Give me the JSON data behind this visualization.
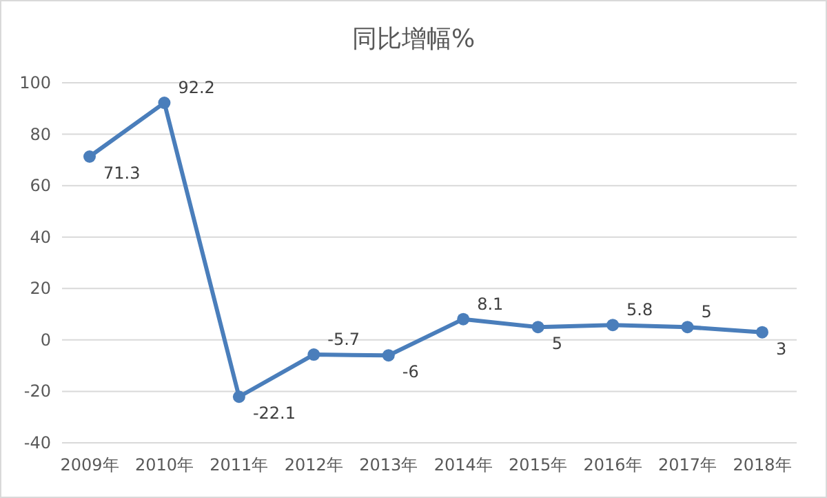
{
  "chart_data": {
    "type": "line",
    "title": "同比增幅%",
    "categories": [
      "2009年",
      "2010年",
      "2011年",
      "2012年",
      "2013年",
      "2014年",
      "2015年",
      "2016年",
      "2017年",
      "2018年"
    ],
    "series": [
      {
        "color": "#4a7ebb",
        "values": [
          71.3,
          92.2,
          -22.1,
          -5.7,
          -6,
          8.1,
          5,
          5.8,
          5,
          3
        ]
      }
    ],
    "ylim": [
      -40,
      100
    ],
    "yticks": [
      -40,
      -20,
      0,
      20,
      40,
      60,
      80,
      100
    ],
    "grid": "y",
    "data_labels": true,
    "marker": "circle",
    "line_style": "solid"
  }
}
